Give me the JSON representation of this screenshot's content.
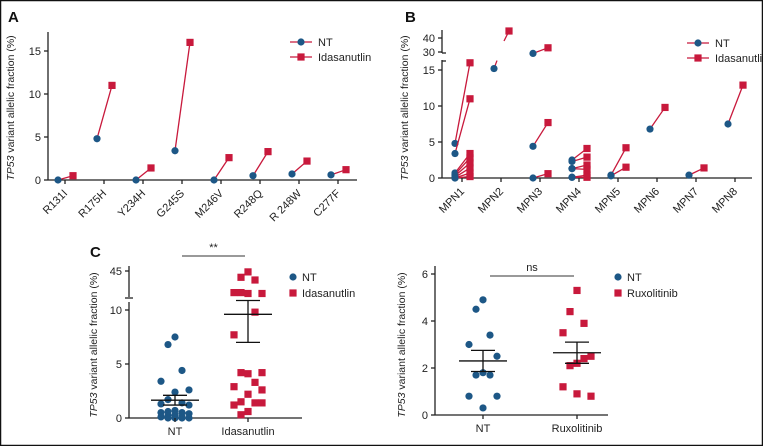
{
  "colors": {
    "NT": "#1d5786",
    "treated": "#c8193c"
  },
  "y_label": {
    "gene": "TP53",
    "rest": " variant allelic fraction (%)"
  },
  "chart_data": [
    {
      "panel": "A",
      "type": "line",
      "categories": [
        "R131I",
        "R175H",
        "Y234H",
        "G245S",
        "M246V",
        "R248Q",
        "R 248W",
        "C277F"
      ],
      "series": [
        {
          "name": "NT",
          "values": [
            0,
            4.8,
            0,
            3.4,
            0,
            0.5,
            0.7,
            0.6
          ]
        },
        {
          "name": "Idasanutlin",
          "values": [
            0.5,
            11,
            1.4,
            16,
            2.6,
            3.3,
            2.2,
            1.2
          ]
        }
      ],
      "ylim": [
        0,
        17
      ],
      "yticks": [
        "0",
        "5",
        "10",
        "15"
      ],
      "legend": "top-right"
    },
    {
      "panel": "B",
      "type": "line",
      "categories": [
        "MPN1",
        "MPN2",
        "MPN3",
        "MPN4",
        "MPN5",
        "MPN6",
        "MPN7",
        "MPN8"
      ],
      "pairs": [
        [
          [
            4.8,
            16
          ],
          [
            3.4,
            11
          ],
          [
            0.7,
            3.4
          ],
          [
            0.5,
            2.8
          ],
          [
            0.3,
            2.1
          ],
          [
            0.1,
            1.4
          ],
          [
            0,
            0.7
          ],
          [
            0,
            0.2
          ]
        ],
        [
          [
            15.2,
            45
          ]
        ],
        [
          [
            29,
            33
          ],
          [
            4.4,
            7.7
          ],
          [
            0,
            0.6
          ]
        ],
        [
          [
            2.5,
            4.1
          ],
          [
            2.3,
            2.9
          ],
          [
            1.3,
            1.8
          ],
          [
            1.3,
            1.2
          ],
          [
            0.1,
            0.4
          ],
          [
            0.1,
            0.1
          ]
        ],
        [
          [
            0.4,
            4.2
          ],
          [
            0.3,
            1.5
          ]
        ],
        [
          [
            6.8,
            9.8
          ]
        ],
        [
          [
            0.4,
            1.4
          ]
        ],
        [
          [
            7.5,
            12.9
          ]
        ]
      ],
      "series_names": [
        "NT",
        "Idasanutlin"
      ],
      "y_axis_break": [
        16,
        28
      ],
      "yticks": [
        "0",
        "5",
        "10",
        "15",
        "30",
        "40"
      ],
      "legend": "top-right"
    },
    {
      "panel": "C",
      "type": "scatter",
      "categories": [
        "NT",
        "Idasanutlin"
      ],
      "series": [
        {
          "name": "NT",
          "values": [
            7.5,
            6.8,
            4.4,
            3.4,
            2.6,
            2.4,
            1.7,
            1.4,
            1.3,
            1.2,
            0.7,
            0.6,
            0.5,
            0.5,
            0.4,
            0.3,
            0.2,
            0.1,
            0.1,
            0,
            0,
            0,
            0
          ],
          "mean": 1.65,
          "sem": [
            1.2,
            2.1
          ]
        },
        {
          "name": "Idasanutlin",
          "values": [
            44,
            38,
            35,
            21,
            20,
            20,
            21,
            9.8,
            7.7,
            4.2,
            4.1,
            4.2,
            3.3,
            2.9,
            2.6,
            2.2,
            1.5,
            1.4,
            1.2,
            1.4,
            0.6,
            0.3
          ],
          "mean": 9.6,
          "sem": [
            7.0,
            12.2
          ]
        }
      ],
      "y_axis_break": [
        10,
        45
      ],
      "yticks": [
        "0",
        "5",
        "10",
        "45"
      ],
      "significance": "**",
      "legend": "top-right"
    },
    {
      "type": "scatter",
      "categories": [
        "NT",
        "Ruxolitinib"
      ],
      "series": [
        {
          "name": "NT",
          "values": [
            4.9,
            4.5,
            3.4,
            3.0,
            2.5,
            1.8,
            1.7,
            1.7,
            0.8,
            0.8,
            0.3
          ],
          "mean": 2.3,
          "sem": [
            1.85,
            2.75
          ]
        },
        {
          "name": "Ruxolitinib",
          "values": [
            5.3,
            4.4,
            3.9,
            3.5,
            2.5,
            2.2,
            2.1,
            2.4,
            1.2,
            0.8,
            0.9
          ],
          "mean": 2.65,
          "sem": [
            2.2,
            3.1
          ]
        }
      ],
      "ylim": [
        0,
        6.2
      ],
      "yticks": [
        "0",
        "2",
        "4",
        "6"
      ],
      "significance": "ns",
      "legend": "top-right"
    }
  ]
}
